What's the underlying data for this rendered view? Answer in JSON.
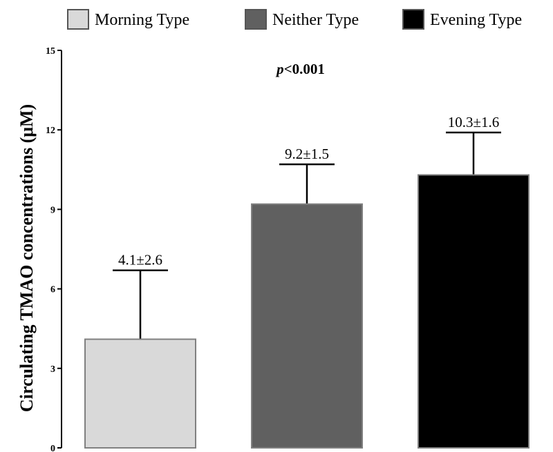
{
  "chart_data": {
    "type": "bar",
    "categories": [
      "Morning Type",
      "Neither Type",
      "Evening Type"
    ],
    "series": [
      {
        "values": [
          4.1,
          9.2,
          10.3
        ],
        "errors": [
          2.6,
          1.5,
          1.6
        ],
        "colors": [
          "#d9d9d9",
          "#606060",
          "#000000"
        ]
      }
    ],
    "data_labels": [
      "4.1±2.6",
      "9.2±1.5",
      "10.3±1.6"
    ],
    "legend": [
      {
        "label": "Morning Type",
        "color": "#d9d9d9"
      },
      {
        "label": "Neither Type",
        "color": "#606060"
      },
      {
        "label": "Evening Type",
        "color": "#000000"
      }
    ],
    "legend_position": "top",
    "ylabel": "Circulating TMAO concentrations (μM)",
    "xlabel": "",
    "ylim": [
      0,
      15
    ],
    "yticks": [
      0,
      3,
      6,
      9,
      12,
      15
    ],
    "grid": false,
    "annotation": {
      "italic": "p",
      "text": "<0.001"
    }
  }
}
